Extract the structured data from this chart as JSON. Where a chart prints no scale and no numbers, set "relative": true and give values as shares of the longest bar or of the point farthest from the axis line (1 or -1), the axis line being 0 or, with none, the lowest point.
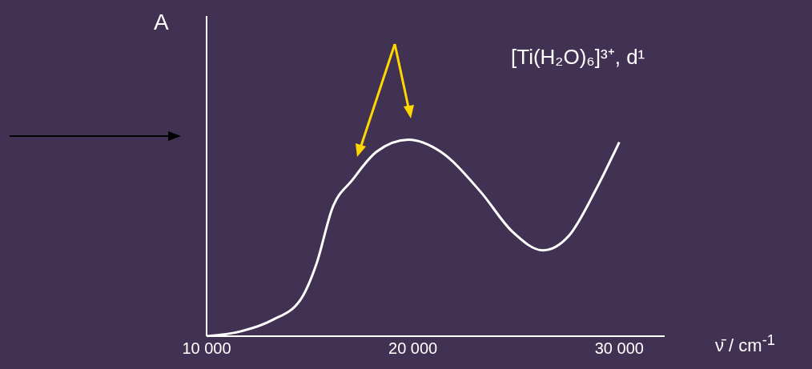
{
  "chart_data": {
    "type": "line",
    "relative": true,
    "ylabel": "A",
    "xlabel": "ν̄ / cm$^{-1}$",
    "annotations": [
      "[Ti(H₂O)₆]³⁺, d¹"
    ],
    "xlim": [
      10000,
      32200
    ],
    "xticks": [
      {
        "value": 10000,
        "label": "10 000"
      },
      {
        "value": 20000,
        "label": "20 000"
      },
      {
        "value": 30000,
        "label": "30 000"
      }
    ],
    "x": [
      10000,
      11630,
      13180,
      14540,
      15320,
      16100,
      17070,
      18240,
      19790,
      21340,
      23280,
      24830,
      26310,
      27550,
      28910,
      30000
    ],
    "series": [
      {
        "color": "#ffffff",
        "values": [
          0,
          0.024,
          0.082,
          0.184,
          0.367,
          0.653,
          0.796,
          0.939,
          1,
          0.939,
          0.735,
          0.531,
          0.437,
          0.51,
          0.755,
          0.988
        ]
      }
    ],
    "grid": false,
    "marker": "none",
    "line_style": "solid"
  }
}
